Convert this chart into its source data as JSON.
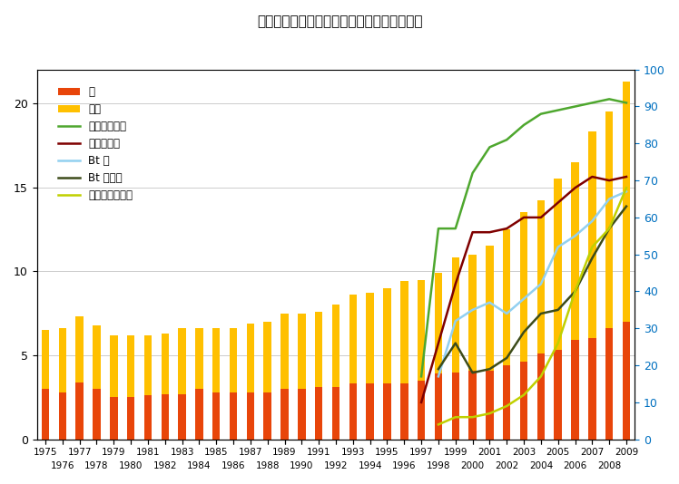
{
  "title": "米国での甲状腺ガンと遺伝子組み換えの推移",
  "years": [
    1975,
    1976,
    1977,
    1978,
    1979,
    1980,
    1981,
    1982,
    1983,
    1984,
    1985,
    1986,
    1987,
    1988,
    1989,
    1990,
    1991,
    1992,
    1993,
    1994,
    1995,
    1996,
    1997,
    1998,
    1999,
    2000,
    2001,
    2002,
    2003,
    2004,
    2005,
    2006,
    2007,
    2008,
    2009
  ],
  "male": [
    3.0,
    2.8,
    3.4,
    3.0,
    2.5,
    2.5,
    2.6,
    2.7,
    2.7,
    3.0,
    2.8,
    2.8,
    2.8,
    2.8,
    3.0,
    3.0,
    3.1,
    3.1,
    3.3,
    3.3,
    3.3,
    3.3,
    3.5,
    3.9,
    4.0,
    4.1,
    4.1,
    4.4,
    4.6,
    5.1,
    5.3,
    5.9,
    6.0,
    6.6,
    7.0
  ],
  "female": [
    6.5,
    6.6,
    7.3,
    6.8,
    6.2,
    6.2,
    6.2,
    6.3,
    6.6,
    6.6,
    6.6,
    6.6,
    6.9,
    7.0,
    7.5,
    7.5,
    7.6,
    8.0,
    8.6,
    8.7,
    9.0,
    9.4,
    9.5,
    9.9,
    10.8,
    11.0,
    11.5,
    12.5,
    13.5,
    14.2,
    15.5,
    16.5,
    18.3,
    19.5,
    21.3
  ],
  "herb_soy": [
    null,
    null,
    null,
    null,
    null,
    null,
    null,
    null,
    null,
    null,
    null,
    null,
    null,
    null,
    null,
    null,
    null,
    null,
    null,
    null,
    null,
    null,
    17.0,
    57.0,
    57.0,
    72.0,
    79.0,
    81.0,
    85.0,
    88.0,
    89.0,
    90.0,
    91.0,
    92.0,
    91.0
  ],
  "herb_cotton": [
    null,
    null,
    null,
    null,
    null,
    null,
    null,
    null,
    null,
    null,
    null,
    null,
    null,
    null,
    null,
    null,
    null,
    null,
    null,
    null,
    null,
    null,
    10.0,
    26.0,
    42.0,
    56.0,
    56.0,
    57.0,
    60.0,
    60.0,
    64.0,
    68.0,
    71.0,
    70.0,
    71.0
  ],
  "bt_cotton": [
    null,
    null,
    null,
    null,
    null,
    null,
    null,
    null,
    null,
    null,
    null,
    null,
    null,
    null,
    null,
    null,
    null,
    null,
    null,
    null,
    null,
    null,
    null,
    17.0,
    32.0,
    35.0,
    37.0,
    34.0,
    38.0,
    42.0,
    52.0,
    55.0,
    59.0,
    65.0,
    67.0
  ],
  "bt_corn": [
    null,
    null,
    null,
    null,
    null,
    null,
    null,
    null,
    null,
    null,
    null,
    null,
    null,
    null,
    null,
    null,
    null,
    null,
    null,
    null,
    null,
    null,
    null,
    19.0,
    26.0,
    18.0,
    19.0,
    22.0,
    29.0,
    34.0,
    35.0,
    40.0,
    49.0,
    57.0,
    63.0
  ],
  "herb_corn": [
    null,
    null,
    null,
    null,
    null,
    null,
    null,
    null,
    null,
    null,
    null,
    null,
    null,
    null,
    null,
    null,
    null,
    null,
    null,
    null,
    null,
    null,
    null,
    4.0,
    6.0,
    6.0,
    7.0,
    9.0,
    12.0,
    17.0,
    26.0,
    40.0,
    52.0,
    57.0,
    68.0
  ],
  "bar_color_male": "#e8450a",
  "bar_color_female": "#ffc000",
  "color_herb_soy": "#4ea72e",
  "color_herb_cotton": "#7f0000",
  "color_bt_cotton": "#92d0f0",
  "color_bt_corn": "#3d4c1a",
  "color_herb_corn": "#c0d000",
  "legend_labels": [
    "男",
    "女性",
    "農薬耕性大豆",
    "農薬耕性綿",
    "Bt 綿",
    "Bt コーン",
    "農薬耕性コーン"
  ],
  "ylim_left": [
    0,
    22
  ],
  "ylim_right": [
    0,
    100
  ],
  "background_color": "#ffffff",
  "plot_bg_color": "#ffffff"
}
